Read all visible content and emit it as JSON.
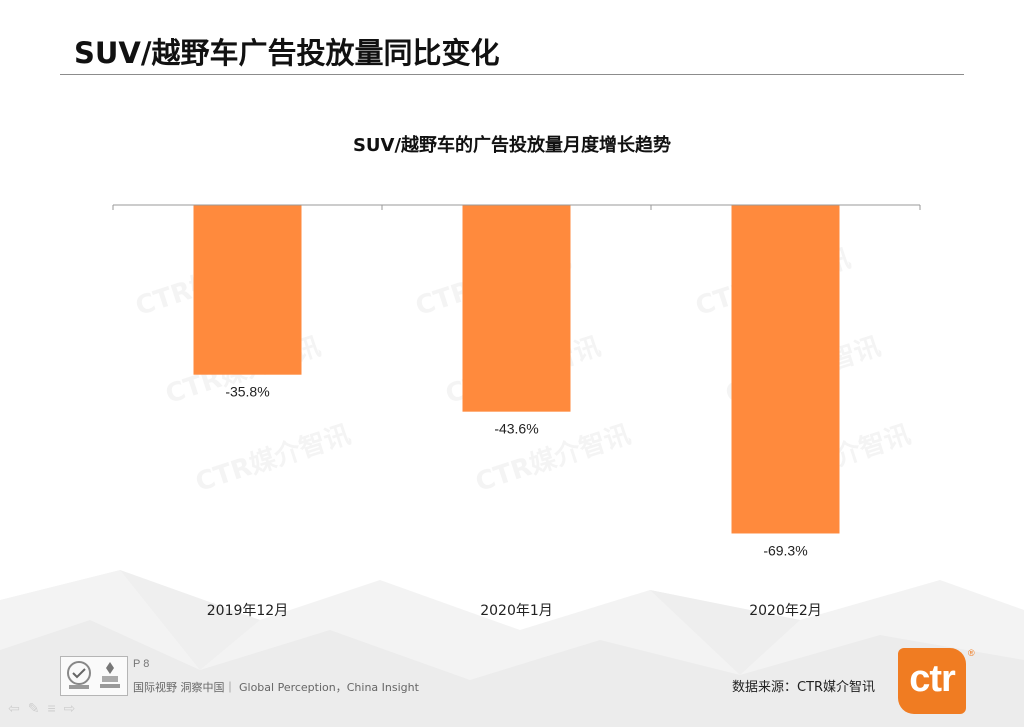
{
  "page": {
    "title": "SUV/越野车广告投放量同比变化"
  },
  "watermark": "CTR媒介智讯",
  "chart_data": {
    "type": "bar",
    "title": "SUV/越野车的广告投放量月度增长趋势",
    "categories": [
      "2019年12月",
      "2020年1月",
      "2020年2月"
    ],
    "values": [
      -35.8,
      -43.6,
      -69.3
    ],
    "value_labels": [
      "-35.8%",
      "-43.6%",
      "-69.3%"
    ],
    "ylim": [
      -80,
      0
    ],
    "bar_color": "#ff8a3d",
    "grid": false,
    "legend": "none"
  },
  "footer": {
    "page_number": "P 8",
    "slogan": "国际视野  洞察中国｜ Global Perception，China Insight",
    "source": "数据来源：CTR媒介智讯",
    "logo_text": "ctr",
    "logo_mark": "®",
    "cert_icons": [
      "sgs-certification-icon",
      "ukas-certification-icon"
    ]
  }
}
